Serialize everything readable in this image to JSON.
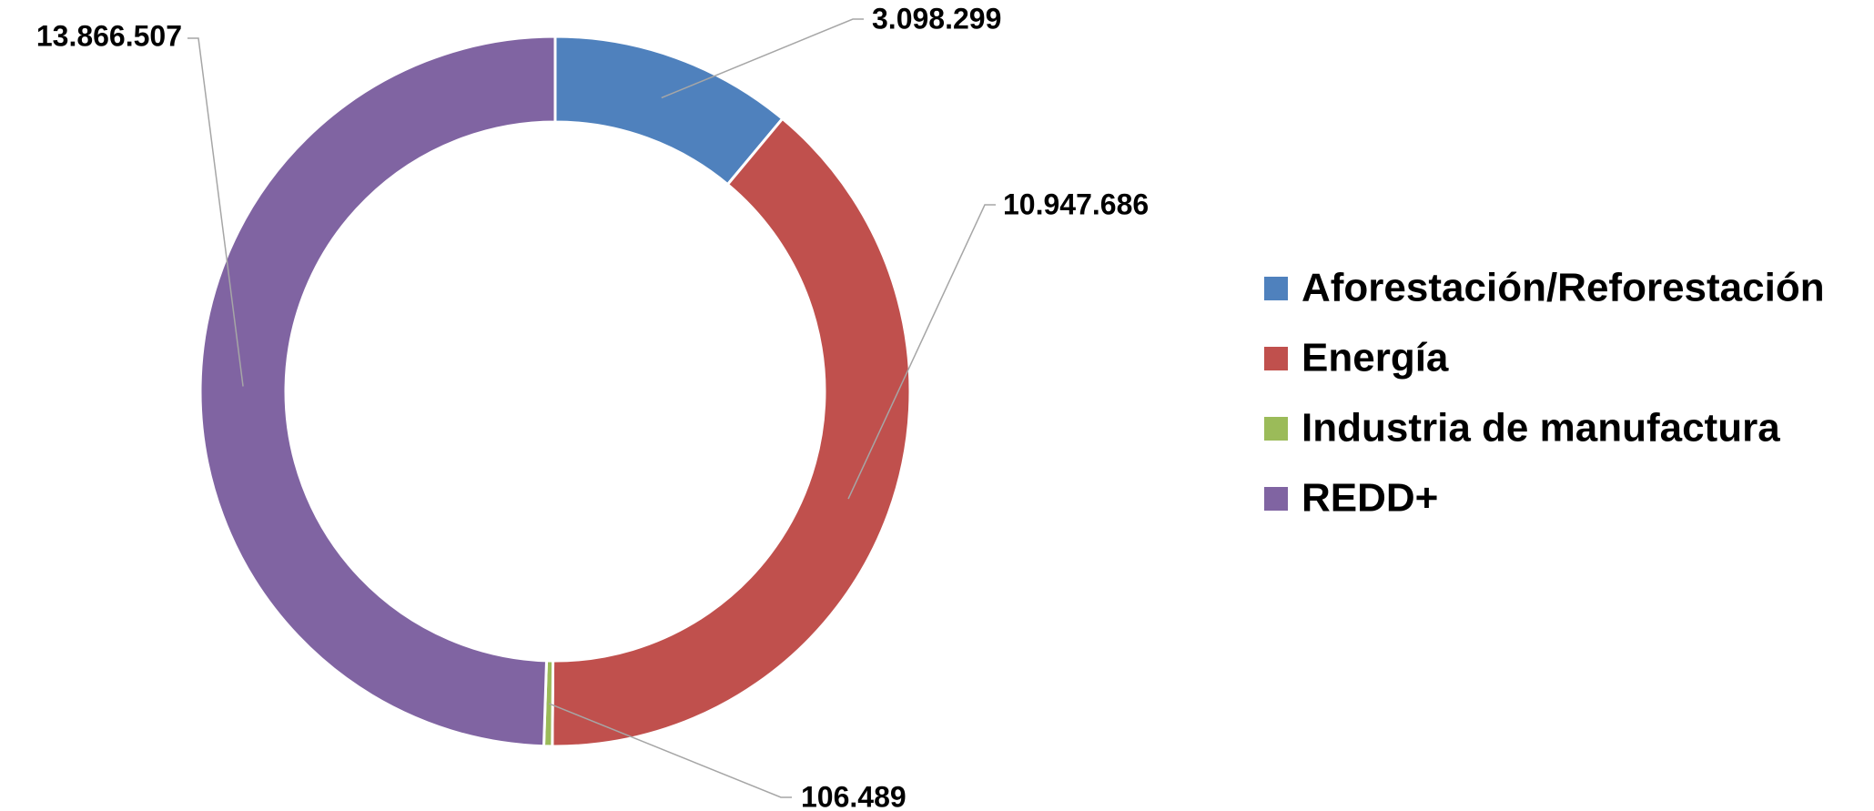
{
  "chart_data": {
    "type": "donut",
    "categories": [
      "Aforestación/Reforestación",
      "Energía",
      "Industria de manufactura",
      "REDD+"
    ],
    "values": [
      3098299,
      10947686,
      106489,
      13866507
    ],
    "value_labels": [
      "3.098.299",
      "10.947.686",
      "106.489",
      "13.866.507"
    ],
    "colors": [
      "#4f81bd",
      "#c0504d",
      "#9bbb59",
      "#8064a2"
    ],
    "legend": "right"
  }
}
